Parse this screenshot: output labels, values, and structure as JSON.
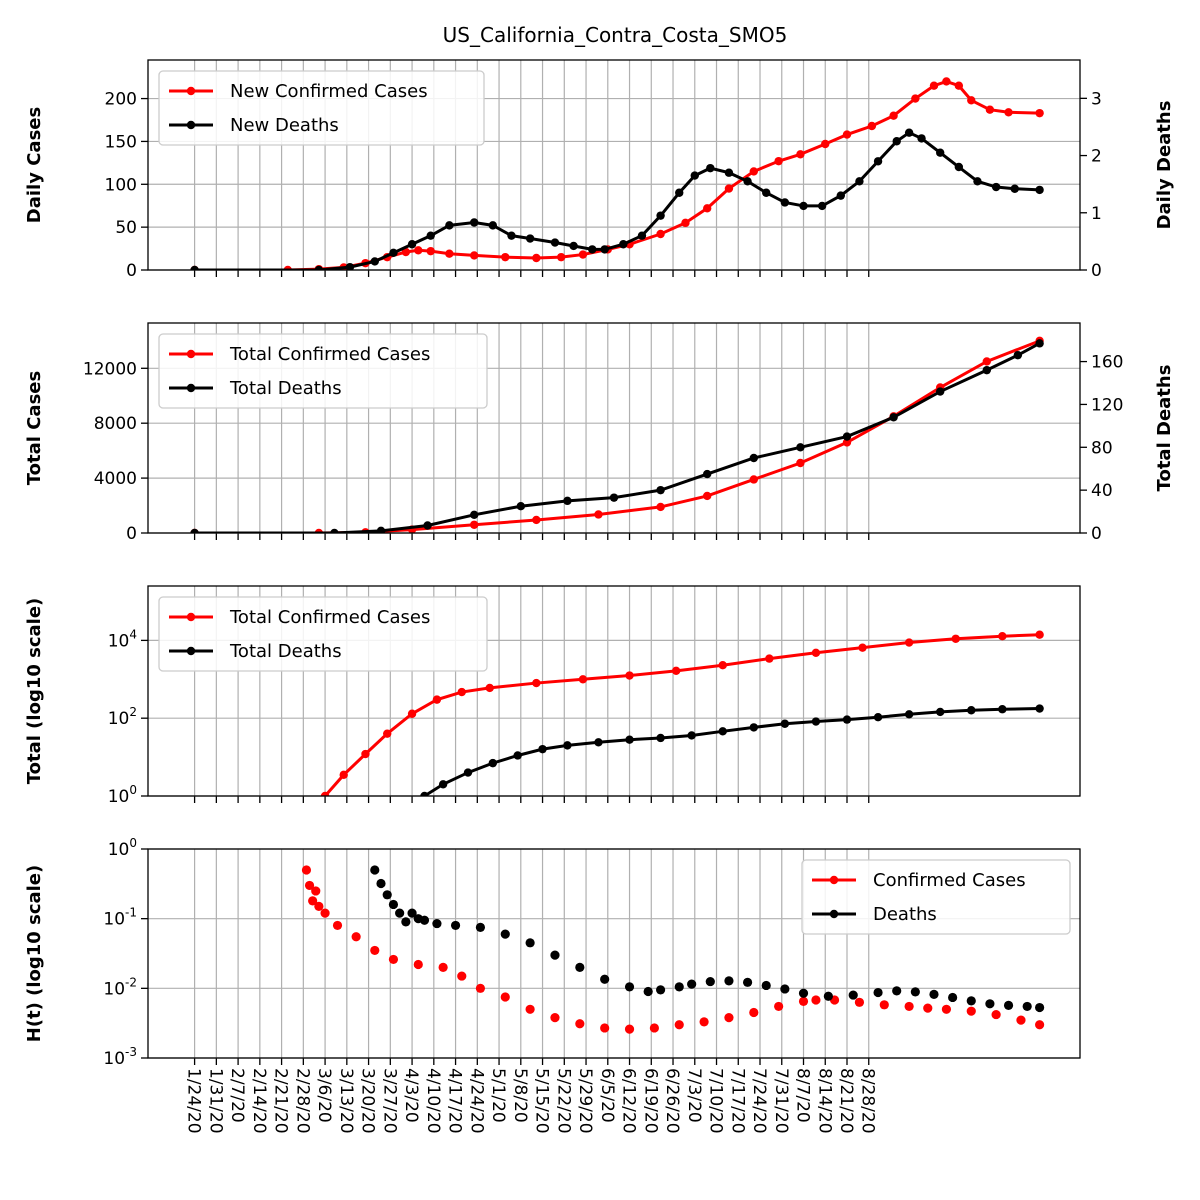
{
  "title": "US_California_Contra_Costa_SMO5",
  "x_dates": [
    "1/24/20",
    "1/31/20",
    "2/7/20",
    "2/14/20",
    "2/21/20",
    "2/28/20",
    "3/6/20",
    "3/13/20",
    "3/20/20",
    "3/27/20",
    "4/3/20",
    "4/10/20",
    "4/17/20",
    "4/24/20",
    "5/1/20",
    "5/8/20",
    "5/15/20",
    "5/22/20",
    "5/29/20",
    "6/5/20",
    "6/12/20",
    "6/19/20",
    "6/26/20",
    "7/3/20",
    "7/10/20",
    "7/17/20",
    "7/24/20",
    "7/31/20",
    "8/7/20",
    "8/14/20",
    "8/21/20",
    "8/28/20"
  ],
  "colors": {
    "cases": "#ff0000",
    "deaths": "#000000"
  },
  "chart_data": [
    {
      "type": "line",
      "title": "US_California_Contra_Costa_SMO5",
      "ylabel": "Daily Cases",
      "ylabel_right": "Daily Deaths",
      "ylim": [
        0,
        245
      ],
      "ylim_right": [
        0,
        3.67
      ],
      "yticks": [
        "0",
        "50",
        "100",
        "150",
        "200"
      ],
      "yticks_right": [
        "0",
        "1",
        "2",
        "3"
      ],
      "legend": "upper-left",
      "grid": true,
      "series": [
        {
          "name": "New Confirmed Cases",
          "axis": "left",
          "color": "#ff0000",
          "points": [
            [
              0,
              0
            ],
            [
              30,
              0
            ],
            [
              40,
              1
            ],
            [
              48,
              3
            ],
            [
              55,
              8
            ],
            [
              62,
              15
            ],
            [
              68,
              21
            ],
            [
              72,
              23
            ],
            [
              76,
              22
            ],
            [
              82,
              19
            ],
            [
              90,
              17
            ],
            [
              100,
              15
            ],
            [
              110,
              14
            ],
            [
              118,
              15
            ],
            [
              125,
              18
            ],
            [
              133,
              24
            ],
            [
              140,
              30
            ],
            [
              150,
              42
            ],
            [
              158,
              55
            ],
            [
              165,
              72
            ],
            [
              172,
              95
            ],
            [
              180,
              115
            ],
            [
              188,
              127
            ],
            [
              195,
              135
            ],
            [
              203,
              147
            ],
            [
              210,
              158
            ],
            [
              218,
              168
            ],
            [
              225,
              180
            ],
            [
              232,
              200
            ],
            [
              238,
              215
            ],
            [
              242,
              220
            ],
            [
              246,
              215
            ],
            [
              250,
              198
            ],
            [
              256,
              187
            ],
            [
              262,
              184
            ],
            [
              272,
              183
            ]
          ]
        },
        {
          "name": "New Deaths",
          "axis": "right",
          "color": "#000000",
          "points": [
            [
              0,
              0
            ],
            [
              40,
              0
            ],
            [
              50,
              0.05
            ],
            [
              58,
              0.15
            ],
            [
              64,
              0.3
            ],
            [
              70,
              0.45
            ],
            [
              76,
              0.6
            ],
            [
              82,
              0.78
            ],
            [
              90,
              0.83
            ],
            [
              96,
              0.78
            ],
            [
              102,
              0.6
            ],
            [
              108,
              0.55
            ],
            [
              116,
              0.48
            ],
            [
              122,
              0.42
            ],
            [
              128,
              0.36
            ],
            [
              132,
              0.36
            ],
            [
              138,
              0.45
            ],
            [
              144,
              0.6
            ],
            [
              150,
              0.95
            ],
            [
              156,
              1.35
            ],
            [
              161,
              1.65
            ],
            [
              166,
              1.78
            ],
            [
              172,
              1.7
            ],
            [
              178,
              1.55
            ],
            [
              184,
              1.35
            ],
            [
              190,
              1.18
            ],
            [
              196,
              1.12
            ],
            [
              202,
              1.12
            ],
            [
              208,
              1.3
            ],
            [
              214,
              1.55
            ],
            [
              220,
              1.9
            ],
            [
              226,
              2.25
            ],
            [
              230,
              2.4
            ],
            [
              234,
              2.3
            ],
            [
              240,
              2.05
            ],
            [
              246,
              1.8
            ],
            [
              252,
              1.55
            ],
            [
              258,
              1.45
            ],
            [
              264,
              1.42
            ],
            [
              272,
              1.4
            ]
          ]
        }
      ]
    },
    {
      "type": "line",
      "ylabel": "Total Cases",
      "ylabel_right": "Total Deaths",
      "ylim": [
        0,
        15300
      ],
      "ylim_right": [
        0,
        196
      ],
      "yticks": [
        "0",
        "4000",
        "8000",
        "12000"
      ],
      "yticks_right": [
        "0",
        "40",
        "80",
        "120",
        "160"
      ],
      "legend": "upper-left",
      "grid": true,
      "series": [
        {
          "name": "Total Confirmed Cases",
          "axis": "left",
          "color": "#ff0000",
          "points": [
            [
              0,
              0
            ],
            [
              40,
              0
            ],
            [
              55,
              50
            ],
            [
              70,
              250
            ],
            [
              90,
              600
            ],
            [
              110,
              950
            ],
            [
              130,
              1350
            ],
            [
              150,
              1900
            ],
            [
              165,
              2700
            ],
            [
              180,
              3900
            ],
            [
              195,
              5100
            ],
            [
              210,
              6600
            ],
            [
              225,
              8500
            ],
            [
              240,
              10600
            ],
            [
              255,
              12500
            ],
            [
              272,
              14000
            ]
          ]
        },
        {
          "name": "Total Deaths",
          "axis": "right",
          "color": "#000000",
          "points": [
            [
              0,
              0
            ],
            [
              45,
              0
            ],
            [
              60,
              2
            ],
            [
              75,
              7
            ],
            [
              90,
              17
            ],
            [
              105,
              25
            ],
            [
              120,
              30
            ],
            [
              135,
              33
            ],
            [
              150,
              40
            ],
            [
              165,
              55
            ],
            [
              180,
              70
            ],
            [
              195,
              80
            ],
            [
              210,
              90
            ],
            [
              225,
              108
            ],
            [
              240,
              132
            ],
            [
              255,
              152
            ],
            [
              265,
              166
            ],
            [
              272,
              177
            ]
          ]
        }
      ]
    },
    {
      "type": "line",
      "ylabel": "Total (log10 scale)",
      "yscale": "log",
      "ylim": [
        1,
        250000
      ],
      "yticks": [
        "10^0",
        "10^2",
        "10^4"
      ],
      "legend": "upper-left",
      "grid": true,
      "series": [
        {
          "name": "Total Confirmed Cases",
          "color": "#ff0000",
          "points": [
            [
              42,
              1
            ],
            [
              48,
              3.5
            ],
            [
              55,
              12
            ],
            [
              62,
              40
            ],
            [
              70,
              130
            ],
            [
              78,
              300
            ],
            [
              86,
              470
            ],
            [
              95,
              600
            ],
            [
              110,
              800
            ],
            [
              125,
              1000
            ],
            [
              140,
              1250
            ],
            [
              155,
              1650
            ],
            [
              170,
              2300
            ],
            [
              185,
              3400
            ],
            [
              200,
              4800
            ],
            [
              215,
              6500
            ],
            [
              230,
              8800
            ],
            [
              245,
              11000
            ],
            [
              260,
              12800
            ],
            [
              272,
              14000
            ]
          ]
        },
        {
          "name": "Total Deaths",
          "color": "#000000",
          "points": [
            [
              74,
              1
            ],
            [
              80,
              2
            ],
            [
              88,
              4
            ],
            [
              96,
              7
            ],
            [
              104,
              11
            ],
            [
              112,
              16
            ],
            [
              120,
              20
            ],
            [
              130,
              24
            ],
            [
              140,
              28
            ],
            [
              150,
              31
            ],
            [
              160,
              36
            ],
            [
              170,
              46
            ],
            [
              180,
              58
            ],
            [
              190,
              72
            ],
            [
              200,
              82
            ],
            [
              210,
              92
            ],
            [
              220,
              106
            ],
            [
              230,
              126
            ],
            [
              240,
              145
            ],
            [
              250,
              160
            ],
            [
              260,
              170
            ],
            [
              272,
              177
            ]
          ]
        }
      ]
    },
    {
      "type": "scatter",
      "ylabel": "H(t) (log10 scale)",
      "yscale": "log",
      "ylim": [
        0.001,
        1
      ],
      "yticks": [
        "10^-3",
        "10^-2",
        "10^-1",
        "10^0"
      ],
      "legend": "upper-right",
      "grid": true,
      "series": [
        {
          "name": "Confirmed Cases",
          "color": "#ff0000",
          "points": [
            [
              36,
              0.5
            ],
            [
              37,
              0.3
            ],
            [
              38,
              0.18
            ],
            [
              39,
              0.25
            ],
            [
              40,
              0.15
            ],
            [
              42,
              0.12
            ],
            [
              46,
              0.08
            ],
            [
              52,
              0.055
            ],
            [
              58,
              0.035
            ],
            [
              64,
              0.026
            ],
            [
              72,
              0.022
            ],
            [
              80,
              0.02
            ],
            [
              86,
              0.015
            ],
            [
              92,
              0.01
            ],
            [
              100,
              0.0075
            ],
            [
              108,
              0.005
            ],
            [
              116,
              0.0038
            ],
            [
              124,
              0.0031
            ],
            [
              132,
              0.0027
            ],
            [
              140,
              0.0026
            ],
            [
              148,
              0.0027
            ],
            [
              156,
              0.003
            ],
            [
              164,
              0.0033
            ],
            [
              172,
              0.0038
            ],
            [
              180,
              0.0045
            ],
            [
              188,
              0.0055
            ],
            [
              196,
              0.0065
            ],
            [
              200,
              0.0068
            ],
            [
              206,
              0.0068
            ],
            [
              214,
              0.0063
            ],
            [
              222,
              0.0058
            ],
            [
              230,
              0.0055
            ],
            [
              236,
              0.0052
            ],
            [
              242,
              0.005
            ],
            [
              250,
              0.0047
            ],
            [
              258,
              0.0042
            ],
            [
              266,
              0.0035
            ],
            [
              272,
              0.003
            ]
          ]
        },
        {
          "name": "Deaths",
          "color": "#000000",
          "points": [
            [
              58,
              0.5
            ],
            [
              60,
              0.32
            ],
            [
              62,
              0.22
            ],
            [
              64,
              0.16
            ],
            [
              66,
              0.12
            ],
            [
              68,
              0.09
            ],
            [
              70,
              0.12
            ],
            [
              72,
              0.1
            ],
            [
              74,
              0.095
            ],
            [
              78,
              0.085
            ],
            [
              84,
              0.08
            ],
            [
              92,
              0.075
            ],
            [
              100,
              0.06
            ],
            [
              108,
              0.045
            ],
            [
              116,
              0.03
            ],
            [
              124,
              0.02
            ],
            [
              132,
              0.0135
            ],
            [
              140,
              0.0105
            ],
            [
              146,
              0.009
            ],
            [
              150,
              0.0095
            ],
            [
              156,
              0.0105
            ],
            [
              160,
              0.0115
            ],
            [
              166,
              0.0125
            ],
            [
              172,
              0.0128
            ],
            [
              178,
              0.0122
            ],
            [
              184,
              0.011
            ],
            [
              190,
              0.0098
            ],
            [
              196,
              0.0085
            ],
            [
              204,
              0.0077
            ],
            [
              212,
              0.008
            ],
            [
              220,
              0.0087
            ],
            [
              226,
              0.0092
            ],
            [
              232,
              0.0089
            ],
            [
              238,
              0.0082
            ],
            [
              244,
              0.0074
            ],
            [
              250,
              0.0066
            ],
            [
              256,
              0.006
            ],
            [
              262,
              0.0057
            ],
            [
              268,
              0.0055
            ],
            [
              272,
              0.0053
            ]
          ]
        }
      ]
    }
  ]
}
